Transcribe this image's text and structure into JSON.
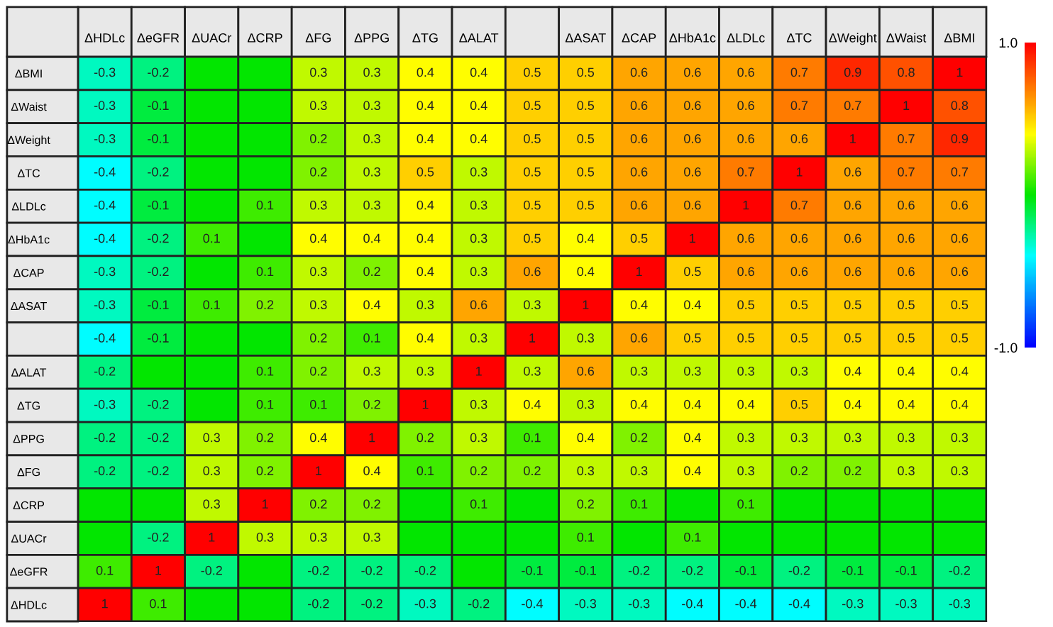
{
  "chart_data": {
    "type": "heatmap",
    "categories": [
      "ΔHDLc",
      "ΔeGFR",
      "ΔUACr",
      "ΔCRP",
      "ΔFG",
      "ΔPPG",
      "ΔTG",
      "ΔALAT",
      null,
      "ΔASAT",
      "ΔCAP",
      "ΔHbA1c",
      "ΔLDLc",
      "ΔTC",
      "ΔWeight",
      "ΔWaist",
      "ΔBMI"
    ],
    "y_categories": [
      "ΔBMI",
      "ΔWaist",
      "ΔWeight",
      "ΔTC",
      "ΔLDLc",
      "ΔHbA1c",
      "ΔCAP",
      "ΔASAT",
      null,
      "ΔALAT",
      "ΔTG",
      "ΔPPG",
      "ΔFG",
      "ΔCRP",
      "ΔUACr",
      "ΔeGFR",
      "ΔHDLc"
    ],
    "cells": [
      [
        -0.3,
        -0.2,
        0,
        0,
        0.3,
        0.3,
        0.4,
        0.4,
        0.5,
        0.5,
        0.6,
        0.6,
        0.6,
        0.7,
        0.9,
        0.8,
        1
      ],
      [
        -0.3,
        -0.1,
        0,
        0,
        0.3,
        0.3,
        0.4,
        0.4,
        0.5,
        0.5,
        0.6,
        0.6,
        0.6,
        0.7,
        0.7,
        1,
        0.8
      ],
      [
        -0.3,
        -0.1,
        0,
        0,
        0.2,
        0.3,
        0.4,
        0.4,
        0.5,
        0.5,
        0.6,
        0.6,
        0.6,
        0.6,
        1,
        0.7,
        0.9
      ],
      [
        -0.4,
        -0.2,
        0,
        0,
        0.2,
        0.3,
        0.5,
        0.3,
        0.5,
        0.5,
        0.6,
        0.6,
        0.7,
        1,
        0.6,
        0.7,
        0.7
      ],
      [
        -0.4,
        -0.1,
        0,
        0.1,
        0.3,
        0.3,
        0.4,
        0.3,
        0.5,
        0.5,
        0.6,
        0.6,
        1,
        0.7,
        0.6,
        0.6,
        0.6
      ],
      [
        -0.4,
        -0.2,
        0.1,
        0,
        0.4,
        0.4,
        0.4,
        0.3,
        0.5,
        0.4,
        0.5,
        1,
        0.6,
        0.6,
        0.6,
        0.6,
        0.6
      ],
      [
        -0.3,
        -0.2,
        0,
        0.1,
        0.3,
        0.2,
        0.4,
        0.3,
        0.6,
        0.4,
        1,
        0.5,
        0.6,
        0.6,
        0.6,
        0.6,
        0.6
      ],
      [
        -0.3,
        -0.1,
        0.1,
        0.2,
        0.3,
        0.4,
        0.3,
        0.6,
        0.3,
        1,
        0.4,
        0.4,
        0.5,
        0.5,
        0.5,
        0.5,
        0.5
      ],
      [
        -0.4,
        -0.1,
        0,
        0,
        0.2,
        0.1,
        0.4,
        0.3,
        1,
        0.3,
        0.6,
        0.5,
        0.5,
        0.5,
        0.5,
        0.5,
        0.5
      ],
      [
        -0.2,
        0,
        0,
        0.1,
        0.2,
        0.3,
        0.3,
        1,
        0.3,
        0.6,
        0.3,
        0.3,
        0.3,
        0.3,
        0.4,
        0.4,
        0.4
      ],
      [
        -0.3,
        -0.2,
        0,
        0.1,
        0.1,
        0.2,
        1,
        0.3,
        0.4,
        0.3,
        0.4,
        0.4,
        0.4,
        0.5,
        0.4,
        0.4,
        0.4
      ],
      [
        -0.2,
        -0.2,
        0.3,
        0.2,
        0.4,
        1,
        0.2,
        0.3,
        0.1,
        0.4,
        0.2,
        0.4,
        0.3,
        0.3,
        0.3,
        0.3,
        0.3
      ],
      [
        -0.2,
        -0.2,
        0.3,
        0.2,
        1,
        0.4,
        0.1,
        0.2,
        0.2,
        0.3,
        0.3,
        0.4,
        0.3,
        0.2,
        0.2,
        0.3,
        0.3
      ],
      [
        0,
        0,
        0.3,
        1,
        0.2,
        0.2,
        0,
        0.1,
        0,
        0.2,
        0.1,
        0,
        0.1,
        0,
        0,
        0,
        0
      ],
      [
        0,
        -0.2,
        1,
        0.3,
        0.3,
        0.3,
        0,
        0,
        0,
        0.1,
        0,
        0.1,
        0,
        0,
        0,
        0,
        0
      ],
      [
        0.1,
        1,
        -0.2,
        0,
        -0.2,
        -0.2,
        -0.2,
        0,
        -0.1,
        -0.1,
        -0.2,
        -0.2,
        -0.1,
        -0.2,
        -0.1,
        -0.1,
        -0.2
      ],
      [
        1,
        0.1,
        0,
        0,
        -0.2,
        -0.2,
        -0.3,
        -0.2,
        -0.4,
        -0.3,
        -0.3,
        -0.4,
        -0.4,
        -0.4,
        -0.3,
        -0.3,
        -0.3
      ]
    ],
    "cell_labels": [
      [
        "-0.3",
        "-0.2",
        null,
        null,
        "0.3",
        "0.3",
        "0.4",
        "0.4",
        "0.5",
        "0.5",
        "0.6",
        "0.6",
        "0.6",
        "0.7",
        "0.9",
        "0.8",
        "1"
      ],
      [
        "-0.3",
        "-0.1",
        null,
        null,
        "0.3",
        "0.3",
        "0.4",
        "0.4",
        "0.5",
        "0.5",
        "0.6",
        "0.6",
        "0.6",
        "0.7",
        "0.7",
        "1",
        "0.8"
      ],
      [
        "-0.3",
        "-0.1",
        null,
        null,
        "0.2",
        "0.3",
        "0.4",
        "0.4",
        "0.5",
        "0.5",
        "0.6",
        "0.6",
        "0.6",
        "0.6",
        "1",
        "0.7",
        "0.9"
      ],
      [
        "-0.4",
        "-0.2",
        null,
        null,
        "0.2",
        "0.3",
        "0.5",
        "0.3",
        "0.5",
        "0.5",
        "0.6",
        "0.6",
        "0.7",
        "1",
        "0.6",
        "0.7",
        "0.7"
      ],
      [
        "-0.4",
        "-0.1",
        null,
        "0.1",
        "0.3",
        "0.3",
        "0.4",
        "0.3",
        "0.5",
        "0.5",
        "0.6",
        "0.6",
        "1",
        "0.7",
        "0.6",
        "0.6",
        "0.6"
      ],
      [
        "-0.4",
        "-0.2",
        "0.1",
        null,
        "0.4",
        "0.4",
        "0.4",
        "0.3",
        "0.5",
        "0.4",
        "0.5",
        "1",
        "0.6",
        "0.6",
        "0.6",
        "0.6",
        "0.6"
      ],
      [
        "-0.3",
        "-0.2",
        null,
        "0.1",
        "0.3",
        "0.2",
        "0.4",
        "0.3",
        "0.6",
        "0.4",
        "1",
        "0.5",
        "0.6",
        "0.6",
        "0.6",
        "0.6",
        "0.6"
      ],
      [
        "-0.3",
        "-0.1",
        "0.1",
        "0.2",
        "0.3",
        "0.4",
        "0.3",
        "0.6",
        "0.3",
        "1",
        "0.4",
        "0.4",
        "0.5",
        "0.5",
        "0.5",
        "0.5",
        "0.5"
      ],
      [
        "-0.4",
        "-0.1",
        null,
        null,
        "0.2",
        "0.1",
        "0.4",
        "0.3",
        "1",
        "0.3",
        "0.6",
        "0.5",
        "0.5",
        "0.5",
        "0.5",
        "0.5",
        "0.5"
      ],
      [
        "-0.2",
        null,
        null,
        "0.1",
        "0.2",
        "0.3",
        "0.3",
        "1",
        "0.3",
        "0.6",
        "0.3",
        "0.3",
        "0.3",
        "0.3",
        "0.4",
        "0.4",
        "0.4"
      ],
      [
        "-0.3",
        "-0.2",
        null,
        "0.1",
        "0.1",
        "0.2",
        "1",
        "0.3",
        "0.4",
        "0.3",
        "0.4",
        "0.4",
        "0.4",
        "0.5",
        "0.4",
        "0.4",
        "0.4"
      ],
      [
        "-0.2",
        "-0.2",
        "0.3",
        "0.2",
        "0.4",
        "1",
        "0.2",
        "0.3",
        "0.1",
        "0.4",
        "0.2",
        "0.4",
        "0.3",
        "0.3",
        "0.3",
        "0.3",
        "0.3"
      ],
      [
        "-0.2",
        "-0.2",
        "0.3",
        "0.2",
        "1",
        "0.4",
        "0.1",
        "0.2",
        "0.2",
        "0.3",
        "0.3",
        "0.4",
        "0.3",
        "0.2",
        "0.2",
        "0.3",
        "0.3"
      ],
      [
        null,
        null,
        "0.3",
        "1",
        "0.2",
        "0.2",
        null,
        "0.1",
        null,
        "0.2",
        "0.1",
        null,
        "0.1",
        null,
        null,
        null,
        null
      ],
      [
        null,
        "-0.2",
        "1",
        "0.3",
        "0.3",
        "0.3",
        null,
        null,
        null,
        "0.1",
        null,
        "0.1",
        null,
        null,
        null,
        null,
        null
      ],
      [
        "0.1",
        "1",
        "-0.2",
        null,
        "-0.2",
        "-0.2",
        "-0.2",
        null,
        "-0.1",
        "-0.1",
        "-0.2",
        "-0.2",
        "-0.1",
        "-0.2",
        "-0.1",
        "-0.1",
        "-0.2"
      ],
      [
        "1",
        "0.1",
        null,
        null,
        "-0.2",
        "-0.2",
        "-0.3",
        "-0.2",
        "-0.4",
        "-0.3",
        "-0.3",
        "-0.4",
        "-0.4",
        "-0.4",
        "-0.3",
        "-0.3",
        "-0.3"
      ]
    ],
    "clim": [
      -1,
      1
    ],
    "cticks": [
      {
        "value": -1,
        "label": "-1.0"
      },
      {
        "value": 1,
        "label": "1.0"
      }
    ]
  }
}
